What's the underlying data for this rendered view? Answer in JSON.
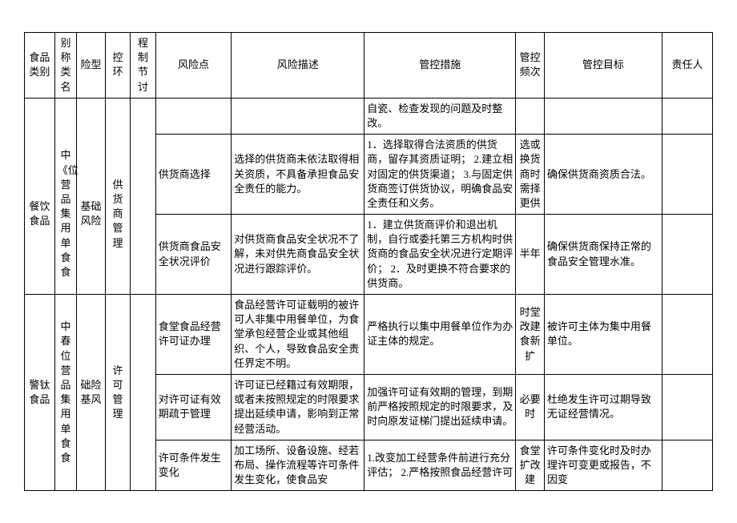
{
  "headers": {
    "category": "食品类别",
    "alias": "别称类名",
    "riskType": "险型",
    "ctrlLink": "控环",
    "procDiscuss": "程制节讨",
    "riskPoint": "风险点",
    "riskDesc": "风险描述",
    "measures": "管控措施",
    "freq": "管控频次",
    "goal": "管控目标",
    "owner": "责任人"
  },
  "r0": {
    "measures": "自瓷、检查发现的问题及时整改。"
  },
  "g1": {
    "category": "餐饮食品",
    "alias": "中《位营品集用单食食",
    "riskType": "基础风险",
    "ctrlLink": "供货商管理",
    "r1": {
      "point": "供货商选择",
      "desc": "选择的供货商未依法取得相关资质，不具备承担食品安全责任的能力。",
      "meas": "1．选择取得合法资质的供货商，留存其资质证明；\n2.建立相对固定的供货渠道；\n3.与固定供货商签订供货协议，明确食品安全责任和义务。",
      "freq": "选或换货商时需择更供",
      "goal": "确保供货商资质合法。"
    },
    "r2": {
      "point": "供货商食品安全状况评价",
      "desc": "对供货商食品安全状况不了解，未对供先商食品安全状况进行跟踪评价。",
      "meas": "1．建立供货商评价和退出机制，自行或委托第三方机构时供货商的食品安全状况进行定期评价；\n2．及时更换不符合要求的供货商。",
      "freq": "半年",
      "goal": "确保供货商保持正常的食品安全管理水准。"
    }
  },
  "g2": {
    "category": "警钛食品",
    "alias": "中春位营品集用单食食",
    "riskType": "础险基风",
    "ctrlLink": "许可管理",
    "r3": {
      "point": "食堂食品经营许可证办理",
      "desc": "食品经营许可证载明的被许可人非集中用餐单位，为食堂承包经营企业或其他组织、个人，导致食品安全责任界定不明。",
      "meas": "严格执行以集中用餐单位作为办证主体的规定。",
      "freq": "时堂改建食新扩",
      "goal": "被许可主体为集中用餐单位。"
    },
    "r4": {
      "point": "对许可证有效期疏于管理",
      "desc": "许可证已经籍过有效期限，或者未按照规定的时限要求提出延续申请，影响到正常经营活动。",
      "meas": "加强许可证有效期的管理，到期前严格按照规定的时限要求，及时向原发证梯门提出延续申请。",
      "freq": "必要时",
      "goal": "杜绝发生许可过期导致无证经营情况。"
    },
    "r5": {
      "point": "许可条件发生变化",
      "desc": "加工场所、设备设施、经若布局、操作流程等许可条件发生变化，使食品安",
      "meas": "1.改变加工经营条件前进行充分评估；\n2.严格按照食品经营许可",
      "freq": "食堂扩改建",
      "goal": "许可条件变化时及时办理许可变更或报告，不因变"
    }
  }
}
